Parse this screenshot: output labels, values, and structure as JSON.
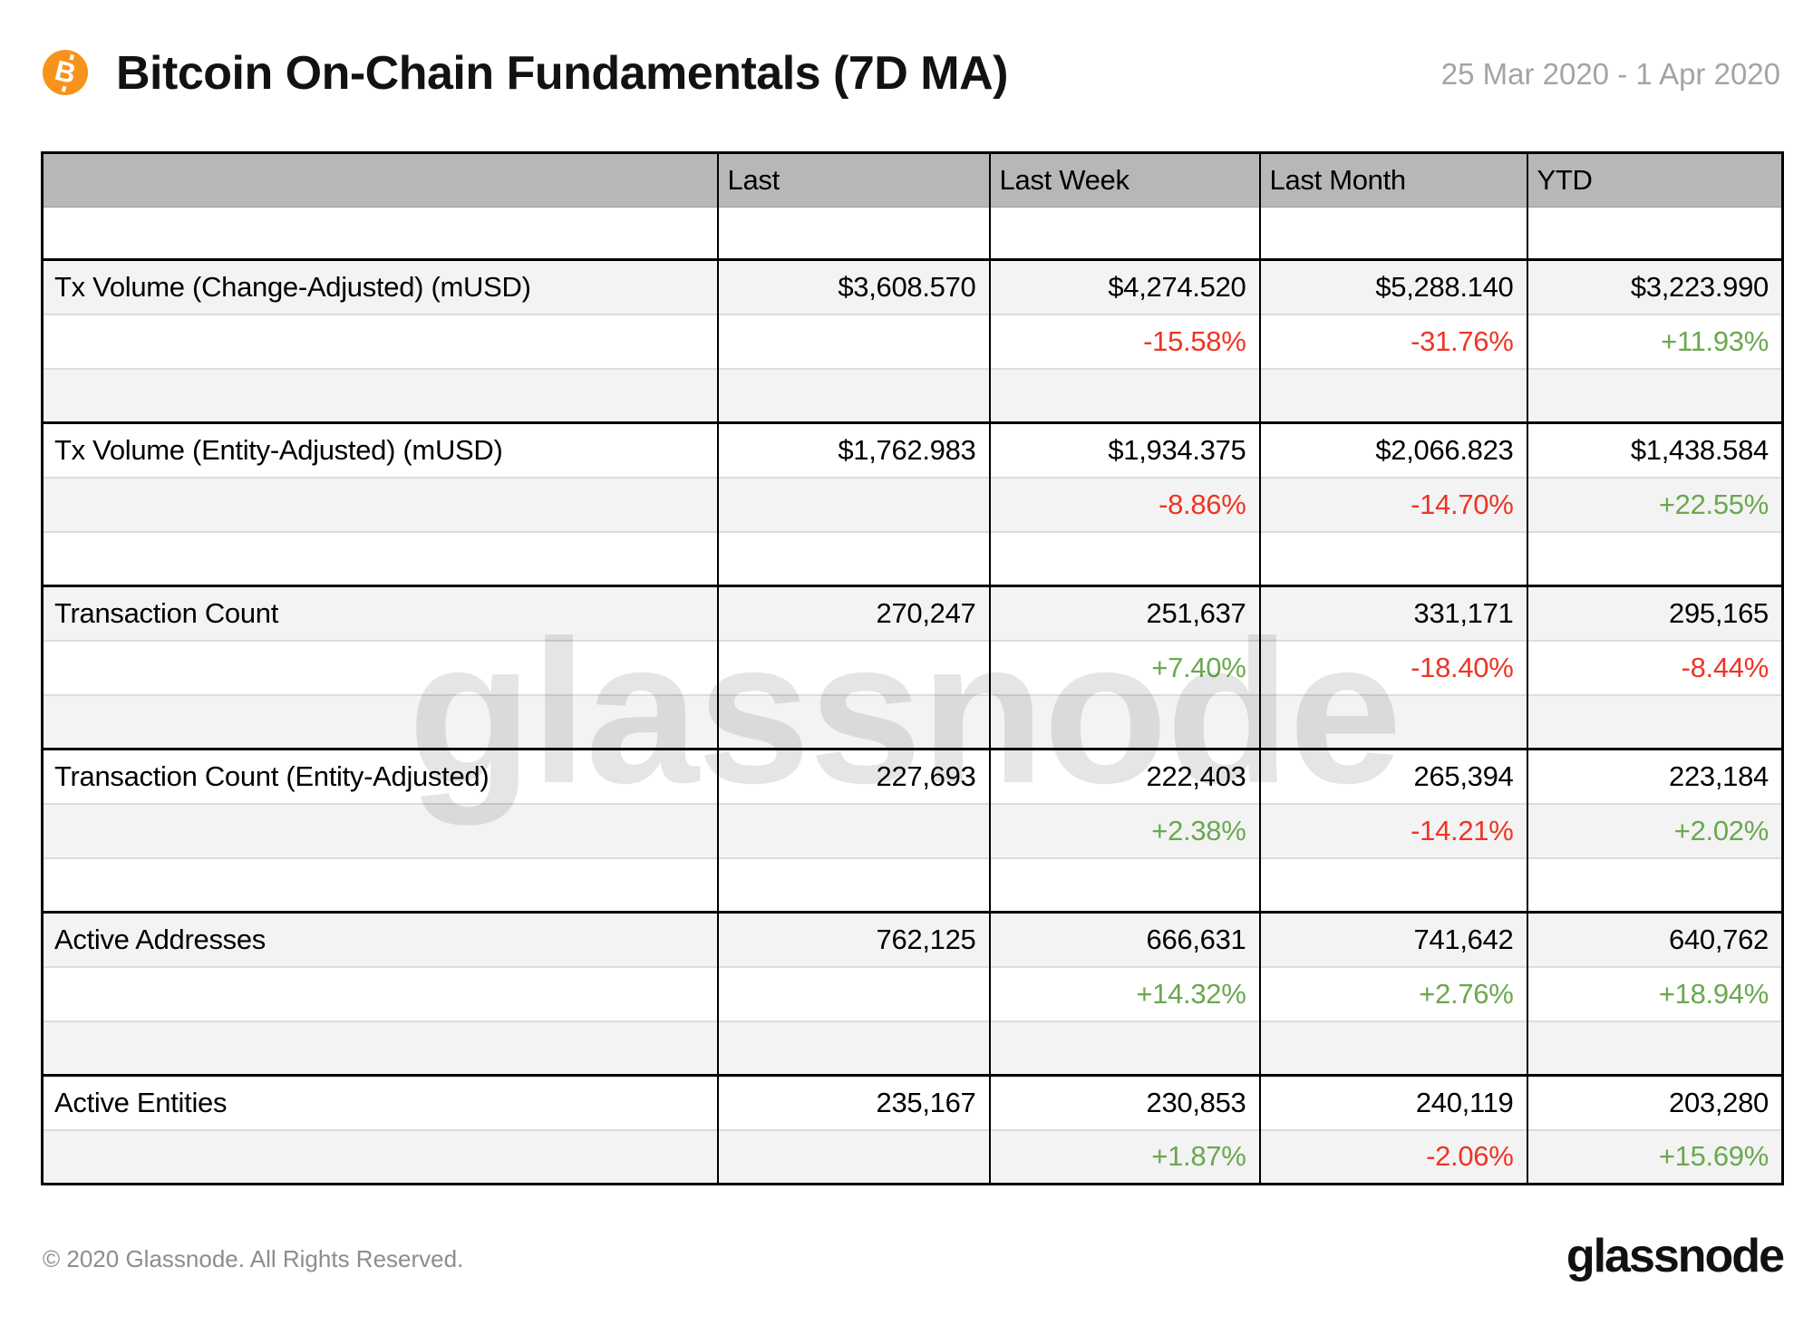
{
  "header": {
    "title": "Bitcoin On-Chain Fundamentals (7D MA)",
    "date_range": "25 Mar 2020 - 1 Apr 2020",
    "bitcoin_icon_glyph": "B"
  },
  "chart_data": {
    "type": "table",
    "title": "Bitcoin On-Chain Fundamentals (7D MA)",
    "period": "25 Mar 2020 - 1 Apr 2020",
    "columns": [
      "Last",
      "Last Week",
      "Last Month",
      "YTD"
    ],
    "rows": [
      {
        "label": "Tx Volume (Change-Adjusted) (mUSD)",
        "values": [
          "$3,608.570",
          "$4,274.520",
          "$5,288.140",
          "$3,223.990"
        ],
        "changes": [
          "",
          "-15.58%",
          "-31.76%",
          "+11.93%"
        ]
      },
      {
        "label": "Tx Volume (Entity-Adjusted) (mUSD)",
        "values": [
          "$1,762.983",
          "$1,934.375",
          "$2,066.823",
          "$1,438.584"
        ],
        "changes": [
          "",
          "-8.86%",
          "-14.70%",
          "+22.55%"
        ]
      },
      {
        "label": "Transaction Count",
        "values": [
          "270,247",
          "251,637",
          "331,171",
          "295,165"
        ],
        "changes": [
          "",
          "+7.40%",
          "-18.40%",
          "-8.44%"
        ]
      },
      {
        "label": "Transaction Count (Entity-Adjusted)",
        "values": [
          "227,693",
          "222,403",
          "265,394",
          "223,184"
        ],
        "changes": [
          "",
          "+2.38%",
          "-14.21%",
          "+2.02%"
        ]
      },
      {
        "label": "Active Addresses",
        "values": [
          "762,125",
          "666,631",
          "741,642",
          "640,762"
        ],
        "changes": [
          "",
          "+14.32%",
          "+2.76%",
          "+18.94%"
        ]
      },
      {
        "label": "Active Entities",
        "values": [
          "235,167",
          "230,853",
          "240,119",
          "203,280"
        ],
        "changes": [
          "",
          "+1.87%",
          "-2.06%",
          "+15.69%"
        ]
      }
    ]
  },
  "watermark": "glassnode",
  "footer": {
    "copyright": "© 2020 Glassnode. All Rights Reserved.",
    "logo_text": "glassnode"
  },
  "colors": {
    "positive": "#6aa84f",
    "negative": "#ee3524",
    "header_bg": "#b7b7b7",
    "stripe_bg": "#f3f3f3",
    "bitcoin_orange": "#f7931a",
    "date_gray": "#a4a4a4"
  }
}
